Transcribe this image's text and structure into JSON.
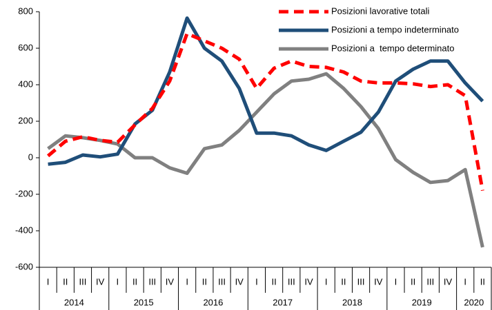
{
  "chart_data": {
    "type": "line",
    "categories": [
      "I",
      "II",
      "III",
      "IV",
      "I",
      "II",
      "III",
      "IV",
      "I",
      "II",
      "III",
      "IV",
      "I",
      "II",
      "III",
      "IV",
      "I",
      "II",
      "III",
      "IV",
      "I",
      "II",
      "III",
      "IV",
      "I",
      "II"
    ],
    "year_groups": [
      {
        "label": "2014",
        "quarters": 4
      },
      {
        "label": "2015",
        "quarters": 4
      },
      {
        "label": "2016",
        "quarters": 4
      },
      {
        "label": "2017",
        "quarters": 4
      },
      {
        "label": "2018",
        "quarters": 4
      },
      {
        "label": "2019",
        "quarters": 4
      },
      {
        "label": "2020",
        "quarters": 2
      }
    ],
    "series": [
      {
        "name": "Posizioni lavorative totali",
        "color": "#ff0000",
        "dashed": true,
        "values": [
          10,
          90,
          115,
          95,
          85,
          180,
          270,
          420,
          680,
          640,
          600,
          540,
          380,
          490,
          530,
          500,
          495,
          470,
          420,
          410,
          410,
          405,
          390,
          400,
          340,
          -180
        ]
      },
      {
        "name": "Posizioni a tempo indeterminato",
        "color": "#1f4e79",
        "dashed": false,
        "values": [
          -35,
          -25,
          15,
          5,
          20,
          185,
          260,
          470,
          765,
          600,
          530,
          380,
          135,
          135,
          120,
          70,
          40,
          90,
          140,
          250,
          420,
          485,
          530,
          530,
          410,
          310
        ]
      },
      {
        "name": "Posizioni a  tempo determinato",
        "color": "#808080",
        "dashed": false,
        "values": [
          50,
          120,
          110,
          95,
          75,
          0,
          0,
          -55,
          -85,
          50,
          70,
          150,
          250,
          350,
          420,
          430,
          460,
          380,
          280,
          160,
          -10,
          -80,
          -135,
          -125,
          -65,
          -490
        ]
      }
    ],
    "ylim": [
      -600,
      800
    ],
    "yticks": [
      -600,
      -400,
      -200,
      0,
      200,
      400,
      600,
      800
    ],
    "grid": false,
    "legend": "top-right"
  }
}
